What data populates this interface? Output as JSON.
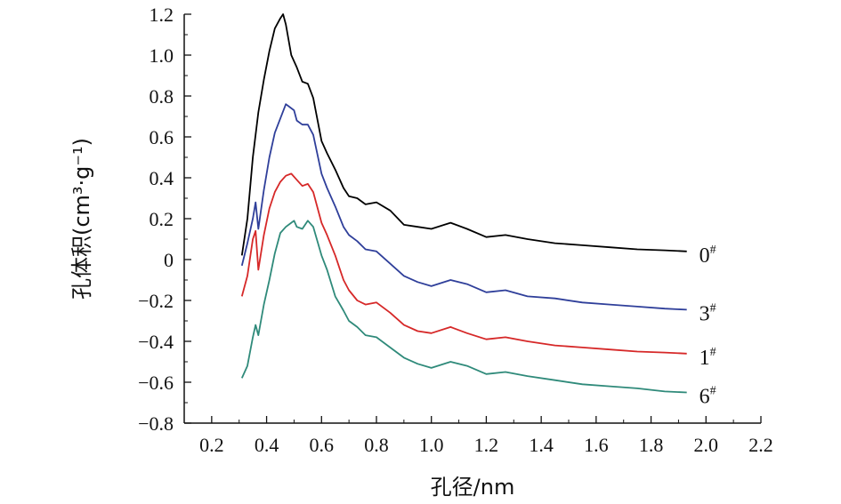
{
  "chart_data": {
    "type": "line",
    "xlabel": "孔径/nm",
    "ylabel": "孔体积(cm³·g⁻¹)",
    "xlim": [
      0.1,
      2.2
    ],
    "ylim": [
      -0.8,
      1.2
    ],
    "xticks": [
      "0.2",
      "0.4",
      "0.6",
      "0.8",
      "1.0",
      "1.2",
      "1.4",
      "1.6",
      "1.8",
      "2.0",
      "2.2"
    ],
    "yticks": [
      "1.2",
      "1.0",
      "0.8",
      "0.6",
      "0.4",
      "0.2",
      "0",
      "−0.2",
      "−0.4",
      "−0.6",
      "−0.8"
    ],
    "grid": false,
    "series": [
      {
        "name": "0#",
        "color": "#000000",
        "x": [
          0.31,
          0.33,
          0.35,
          0.37,
          0.39,
          0.41,
          0.43,
          0.45,
          0.46,
          0.47,
          0.49,
          0.51,
          0.53,
          0.55,
          0.57,
          0.6,
          0.62,
          0.65,
          0.68,
          0.7,
          0.73,
          0.76,
          0.8,
          0.85,
          0.9,
          0.95,
          1.0,
          1.07,
          1.13,
          1.2,
          1.27,
          1.35,
          1.45,
          1.55,
          1.65,
          1.75,
          1.85,
          1.93
        ],
        "y": [
          0.02,
          0.2,
          0.5,
          0.72,
          0.88,
          1.02,
          1.13,
          1.18,
          1.2,
          1.15,
          1.0,
          0.94,
          0.87,
          0.86,
          0.79,
          0.58,
          0.52,
          0.44,
          0.35,
          0.31,
          0.3,
          0.27,
          0.28,
          0.24,
          0.17,
          0.16,
          0.15,
          0.18,
          0.15,
          0.11,
          0.12,
          0.1,
          0.08,
          0.07,
          0.06,
          0.05,
          0.045,
          0.04
        ]
      },
      {
        "name": "3#",
        "color": "#2f3f9a",
        "x": [
          0.31,
          0.33,
          0.35,
          0.36,
          0.37,
          0.39,
          0.41,
          0.43,
          0.45,
          0.47,
          0.48,
          0.5,
          0.51,
          0.53,
          0.55,
          0.57,
          0.6,
          0.62,
          0.65,
          0.68,
          0.7,
          0.73,
          0.76,
          0.8,
          0.85,
          0.9,
          0.95,
          1.0,
          1.07,
          1.13,
          1.2,
          1.27,
          1.35,
          1.45,
          1.55,
          1.65,
          1.75,
          1.85,
          1.93
        ],
        "y": [
          -0.03,
          0.08,
          0.2,
          0.28,
          0.15,
          0.34,
          0.5,
          0.62,
          0.69,
          0.76,
          0.75,
          0.73,
          0.68,
          0.66,
          0.66,
          0.61,
          0.42,
          0.35,
          0.26,
          0.16,
          0.12,
          0.09,
          0.05,
          0.04,
          -0.02,
          -0.08,
          -0.11,
          -0.13,
          -0.1,
          -0.12,
          -0.16,
          -0.15,
          -0.18,
          -0.19,
          -0.21,
          -0.22,
          -0.23,
          -0.24,
          -0.245
        ]
      },
      {
        "name": "1#",
        "color": "#d62828",
        "x": [
          0.31,
          0.33,
          0.35,
          0.36,
          0.37,
          0.39,
          0.41,
          0.43,
          0.45,
          0.47,
          0.49,
          0.51,
          0.53,
          0.55,
          0.57,
          0.6,
          0.62,
          0.65,
          0.68,
          0.7,
          0.73,
          0.76,
          0.8,
          0.85,
          0.9,
          0.95,
          1.0,
          1.07,
          1.13,
          1.2,
          1.27,
          1.35,
          1.45,
          1.55,
          1.65,
          1.75,
          1.85,
          1.93
        ],
        "y": [
          -0.18,
          -0.08,
          0.1,
          0.14,
          -0.05,
          0.12,
          0.25,
          0.33,
          0.38,
          0.41,
          0.42,
          0.39,
          0.36,
          0.37,
          0.33,
          0.18,
          0.12,
          0.02,
          -0.1,
          -0.15,
          -0.2,
          -0.22,
          -0.21,
          -0.26,
          -0.32,
          -0.35,
          -0.36,
          -0.33,
          -0.36,
          -0.39,
          -0.38,
          -0.4,
          -0.42,
          -0.43,
          -0.44,
          -0.45,
          -0.455,
          -0.46
        ]
      },
      {
        "name": "6#",
        "color": "#2f8a7a",
        "x": [
          0.31,
          0.33,
          0.35,
          0.36,
          0.37,
          0.39,
          0.41,
          0.43,
          0.45,
          0.47,
          0.49,
          0.5,
          0.51,
          0.53,
          0.55,
          0.57,
          0.6,
          0.62,
          0.65,
          0.68,
          0.7,
          0.73,
          0.76,
          0.8,
          0.85,
          0.9,
          0.95,
          1.0,
          1.07,
          1.13,
          1.2,
          1.27,
          1.35,
          1.45,
          1.55,
          1.65,
          1.75,
          1.85,
          1.93
        ],
        "y": [
          -0.58,
          -0.52,
          -0.38,
          -0.32,
          -0.37,
          -0.22,
          -0.1,
          0.03,
          0.13,
          0.16,
          0.18,
          0.19,
          0.16,
          0.15,
          0.19,
          0.16,
          0.02,
          -0.05,
          -0.18,
          -0.25,
          -0.3,
          -0.33,
          -0.37,
          -0.38,
          -0.43,
          -0.48,
          -0.51,
          -0.53,
          -0.5,
          -0.52,
          -0.56,
          -0.55,
          -0.57,
          -0.59,
          -0.61,
          -0.62,
          -0.63,
          -0.645,
          -0.65
        ]
      }
    ]
  }
}
